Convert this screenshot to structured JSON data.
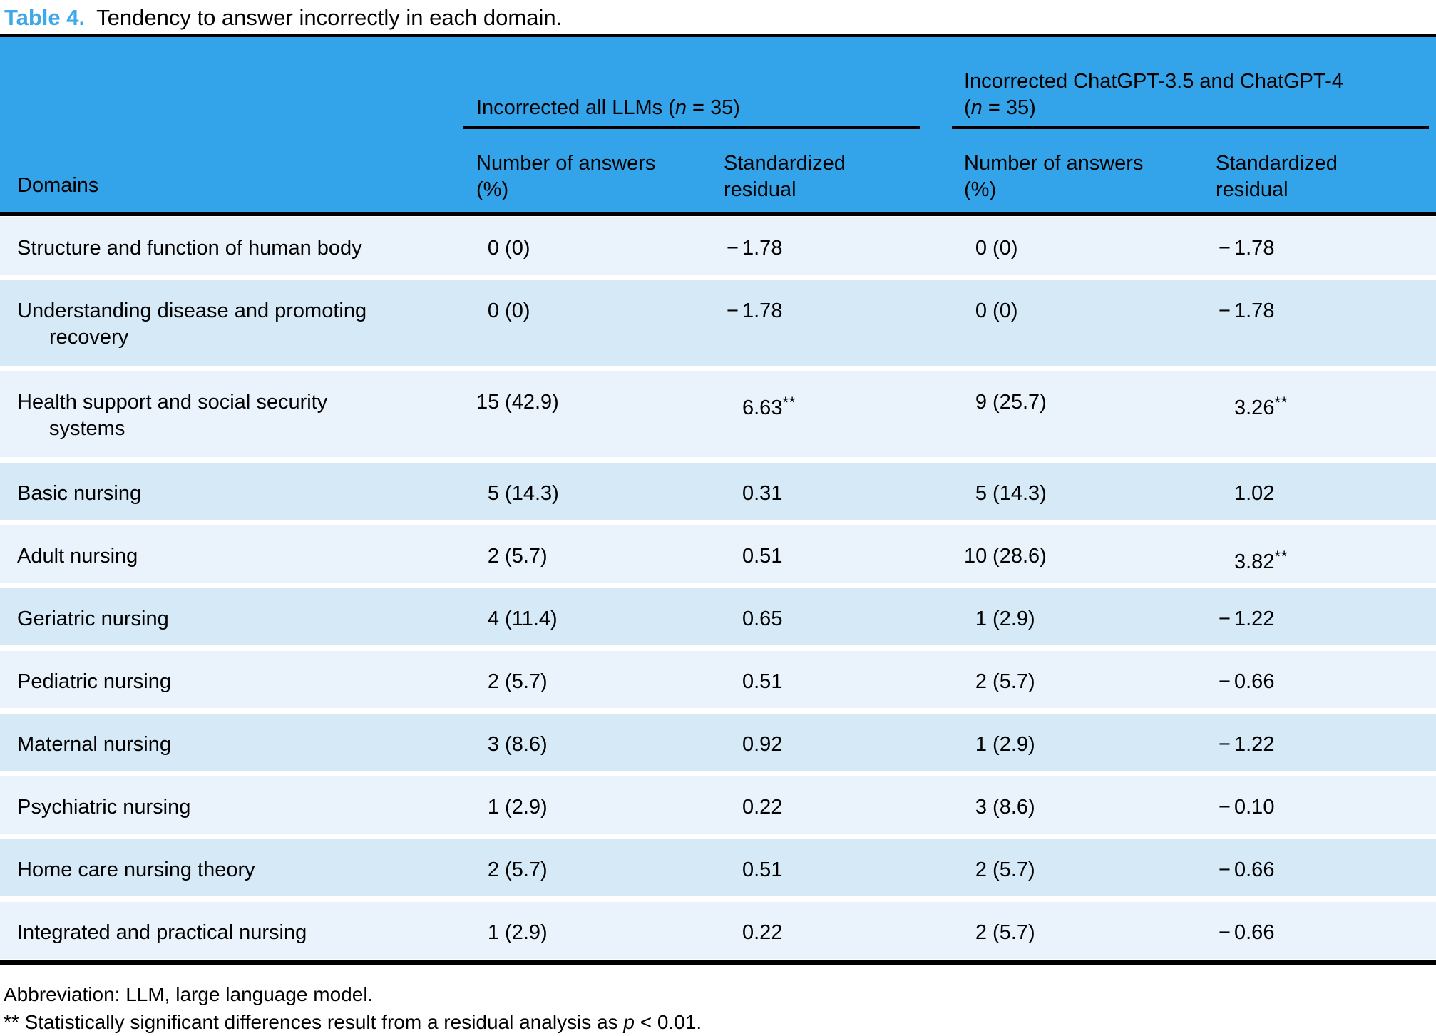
{
  "title": {
    "label": "Table 4.",
    "text": "Tendency to answer incorrectly in each domain."
  },
  "header": {
    "domains": "Domains",
    "groups": [
      "Incorrected all LLMs (n = 35)",
      "Incorrected ChatGPT-3.5 and ChatGPT-4\n(n = 35)"
    ],
    "subcolumns": [
      "Number of answers\n(%)",
      "Standardized\nresidual",
      "Number of answers\n(%)",
      "Standardized\nresidual"
    ]
  },
  "rows": [
    {
      "domain": "Structure and function of human body",
      "cells": [
        "0 (0)",
        "−1.78",
        "0 (0)",
        "−1.78"
      ]
    },
    {
      "domain": "Understanding disease and promoting\nrecovery",
      "cells": [
        "0 (0)",
        "−1.78",
        "0 (0)",
        "−1.78"
      ]
    },
    {
      "domain": "Health support and social security\nsystems",
      "cells": [
        "15 (42.9)",
        "6.63**",
        "9 (25.7)",
        "3.26**"
      ]
    },
    {
      "domain": "Basic nursing",
      "cells": [
        "5 (14.3)",
        "0.31",
        "5 (14.3)",
        "1.02"
      ]
    },
    {
      "domain": "Adult nursing",
      "cells": [
        "2 (5.7)",
        "0.51",
        "10 (28.6)",
        "3.82**"
      ]
    },
    {
      "domain": "Geriatric nursing",
      "cells": [
        "4 (11.4)",
        "0.65",
        "1 (2.9)",
        "−1.22"
      ]
    },
    {
      "domain": "Pediatric nursing",
      "cells": [
        "2 (5.7)",
        "0.51",
        "2 (5.7)",
        "−0.66"
      ]
    },
    {
      "domain": "Maternal nursing",
      "cells": [
        "3 (8.6)",
        "0.92",
        "1 (2.9)",
        "−1.22"
      ]
    },
    {
      "domain": "Psychiatric nursing",
      "cells": [
        "1 (2.9)",
        "0.22",
        "3 (8.6)",
        "−0.10"
      ]
    },
    {
      "domain": "Home care nursing theory",
      "cells": [
        "2 (5.7)",
        "0.51",
        "2 (5.7)",
        "−0.66"
      ]
    },
    {
      "domain": "Integrated and practical nursing",
      "cells": [
        "1 (2.9)",
        "0.22",
        "2 (5.7)",
        "−0.66"
      ]
    }
  ],
  "footnotes": [
    "Abbreviation: LLM, large language model.",
    "** Statistically significant differences result from a residual analysis as p < 0.01."
  ],
  "colors": {
    "title_accent": "#3FA8EA",
    "header_background": "#34A4EA",
    "row_light": "#EAF2FB",
    "row_dark": "#D6E9F7",
    "rule_black": "#000000",
    "text": "#000000"
  }
}
